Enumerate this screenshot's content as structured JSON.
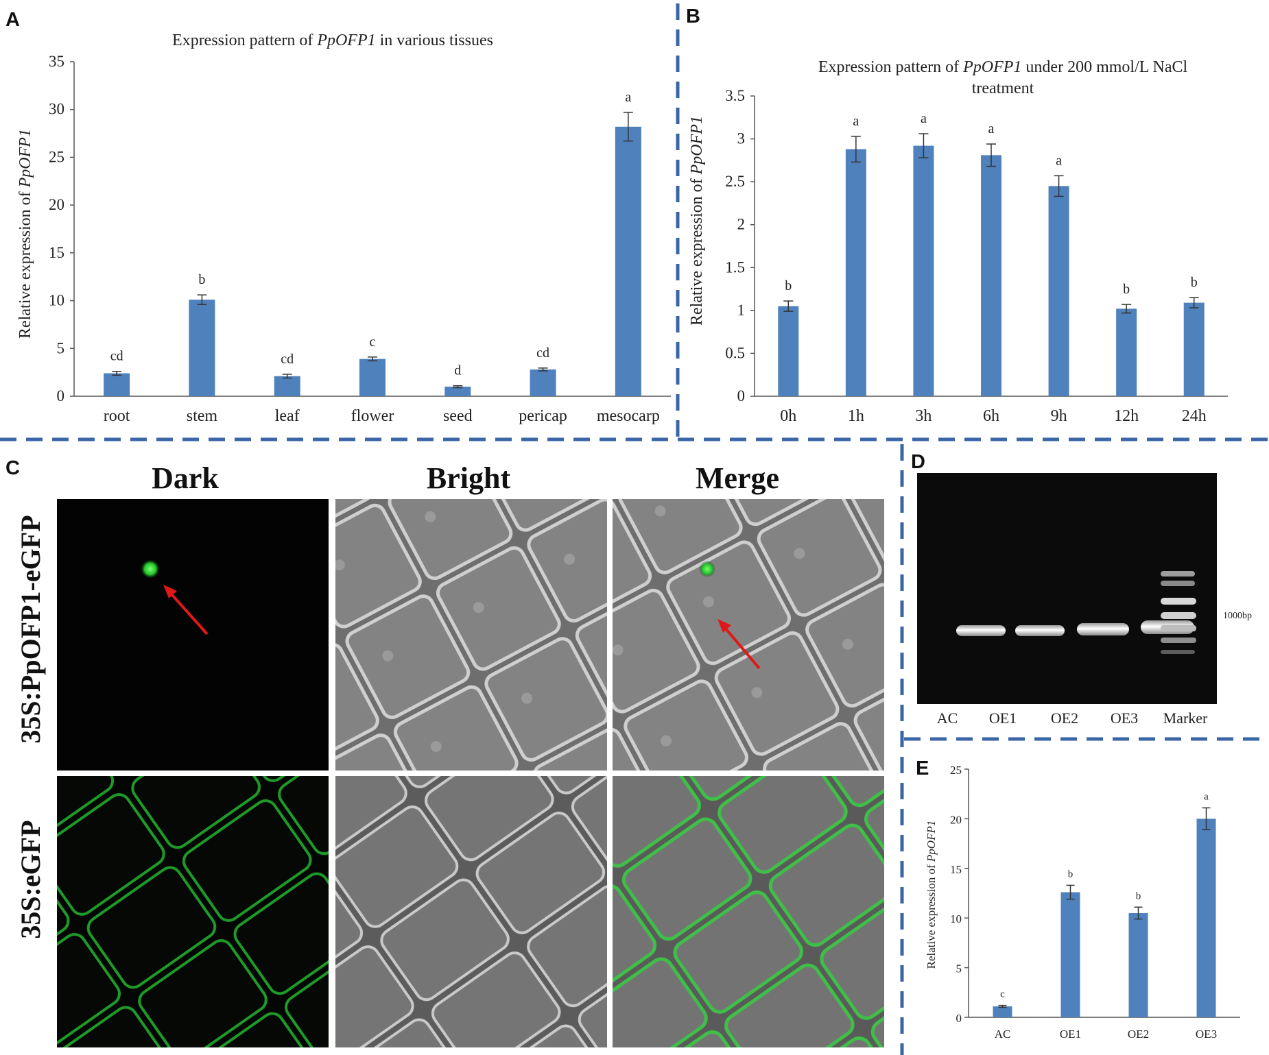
{
  "colors": {
    "bar": "#4f81bd",
    "divider": "#3a65a6",
    "gfp": "#2fd23a",
    "arrow": "#e01818"
  },
  "panels": {
    "A": {
      "letter": "A"
    },
    "B": {
      "letter": "B"
    },
    "C": {
      "letter": "C"
    },
    "D": {
      "letter": "D"
    },
    "E": {
      "letter": "E"
    }
  },
  "microscopy": {
    "columns": [
      "Dark",
      "Bright",
      "Merge"
    ],
    "rows": [
      "35S:PpOFP1-eGFP",
      "35S:eGFP"
    ]
  },
  "gel": {
    "lanes": [
      "AC",
      "OE1",
      "OE2",
      "OE3",
      "Marker"
    ],
    "marker_label": "1000bp"
  },
  "chart_data": [
    {
      "id": "A",
      "type": "bar",
      "title_prefix": "Expression pattern of ",
      "title_gene": "PpOFP1",
      "title_suffix": " in various tissues",
      "ylabel_prefix": "Relative expression of ",
      "ylabel_gene": "PpOFP1",
      "categories": [
        "root",
        "stem",
        "leaf",
        "flower",
        "seed",
        "pericap",
        "mesocarp"
      ],
      "values": [
        2.4,
        10.1,
        2.1,
        3.9,
        1.0,
        2.8,
        28.2
      ],
      "errors": [
        0.2,
        0.5,
        0.2,
        0.2,
        0.1,
        0.15,
        1.5
      ],
      "significance": [
        "cd",
        "b",
        "cd",
        "c",
        "d",
        "cd",
        "a"
      ],
      "yticks": [
        "0",
        "5",
        "10",
        "15",
        "20",
        "25",
        "30",
        "35"
      ],
      "ylim": [
        0,
        35
      ]
    },
    {
      "id": "B",
      "type": "bar",
      "title_prefix": "Expression pattern of ",
      "title_gene": "PpOFP1",
      "title_suffix": " under 200 mmol/L NaCl",
      "title_line2": "treatment",
      "ylabel_prefix": "Relative expression of ",
      "ylabel_gene": "PpOFP1",
      "categories": [
        "0h",
        "1h",
        "3h",
        "6h",
        "9h",
        "12h",
        "24h"
      ],
      "values": [
        1.05,
        2.88,
        2.92,
        2.81,
        2.45,
        1.02,
        1.09
      ],
      "errors": [
        0.06,
        0.15,
        0.14,
        0.13,
        0.12,
        0.05,
        0.06
      ],
      "significance": [
        "b",
        "a",
        "a",
        "a",
        "a",
        "b",
        "b"
      ],
      "yticks": [
        "0",
        "0.5",
        "1",
        "1.5",
        "2",
        "2.5",
        "3",
        "3.5"
      ],
      "ylim": [
        0,
        3.5
      ]
    },
    {
      "id": "E",
      "type": "bar",
      "ylabel_prefix": "Relative expression of ",
      "ylabel_gene": "PpOFP1",
      "categories": [
        "AC",
        "OE1",
        "OE2",
        "OE3"
      ],
      "values": [
        1.1,
        12.6,
        10.5,
        20.0
      ],
      "errors": [
        0.1,
        0.7,
        0.6,
        1.1
      ],
      "significance": [
        "c",
        "b",
        "b",
        "a"
      ],
      "yticks": [
        "0",
        "5",
        "10",
        "15",
        "20",
        "25"
      ],
      "ylim": [
        0,
        25
      ]
    }
  ]
}
